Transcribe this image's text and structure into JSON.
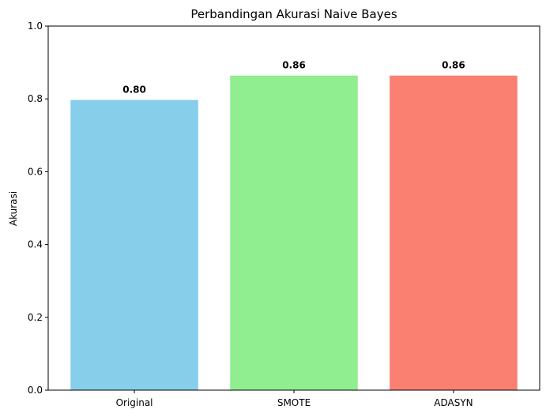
{
  "chart_data": {
    "type": "bar",
    "title": "Perbandingan Akurasi Naive Bayes",
    "xlabel": "",
    "ylabel": "Akurasi",
    "categories": [
      "Original",
      "SMOTE",
      "ADASYN"
    ],
    "values": [
      0.797,
      0.864,
      0.864
    ],
    "data_labels": [
      "0.80",
      "0.86",
      "0.86"
    ],
    "colors": [
      "#87CEEB",
      "#90EE90",
      "#FA8072"
    ],
    "ylim": [
      0,
      1
    ],
    "yticks": [
      0.0,
      0.2,
      0.4,
      0.6,
      0.8,
      1.0
    ],
    "ytick_labels": [
      "0.0",
      "0.2",
      "0.4",
      "0.6",
      "0.8",
      "1.0"
    ],
    "grid": false,
    "legend": "none"
  }
}
